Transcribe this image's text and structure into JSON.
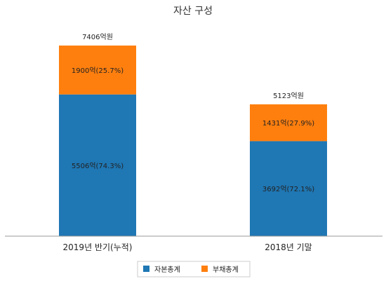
{
  "chart_data": {
    "type": "bar",
    "stacked": true,
    "title": "자산 구성",
    "categories": [
      "2019년 반기(누적)",
      "2018년 기말"
    ],
    "series": [
      {
        "name": "자본총계",
        "values": [
          5506,
          3692
        ],
        "labels": [
          "5506억(74.3%)",
          "3692억(72.1%)"
        ],
        "color": "#1f77b4"
      },
      {
        "name": "부채총계",
        "values": [
          1900,
          1431
        ],
        "labels": [
          "1900억(25.7%)",
          "1431억(27.9%)"
        ],
        "color": "#ff7f0e"
      }
    ],
    "totals": [
      7406,
      5123
    ],
    "total_labels": [
      "7406억원",
      "5123억원"
    ],
    "ylim": [
      0,
      7406
    ],
    "grid": false,
    "legend_position": "bottom-center",
    "colors": {
      "background": "#ffffff",
      "axis": "#999999",
      "legend_border": "#cccccc"
    }
  }
}
